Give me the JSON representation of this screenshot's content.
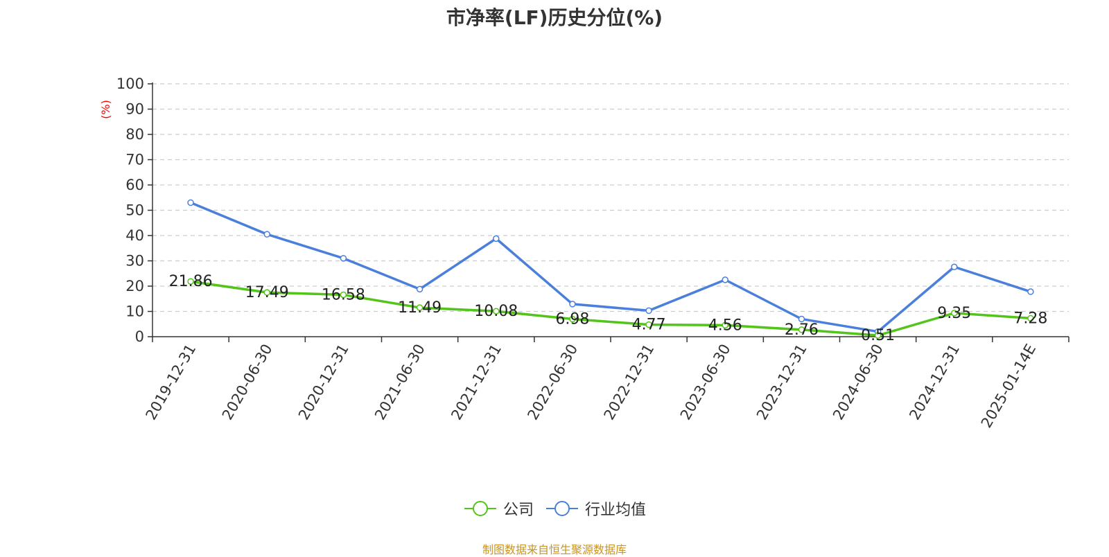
{
  "chart_data": {
    "type": "line",
    "title": "市净率(LF)历史分位(%)",
    "ylabel": "(%)",
    "xlabel": "",
    "ylim": [
      0,
      100
    ],
    "yticks": [
      0,
      10,
      20,
      30,
      40,
      50,
      60,
      70,
      80,
      90,
      100
    ],
    "grid": true,
    "legend_position": "bottom",
    "categories": [
      "2019-12-31",
      "2020-06-30",
      "2020-12-31",
      "2021-06-30",
      "2021-12-31",
      "2022-06-30",
      "2022-12-31",
      "2023-06-30",
      "2023-12-31",
      "2024-06-30",
      "2024-12-31",
      "2025-01-14E"
    ],
    "series": [
      {
        "name": "公司",
        "color": "#52c41a",
        "values": [
          21.86,
          17.49,
          16.58,
          11.49,
          10.08,
          6.98,
          4.77,
          4.56,
          2.76,
          0.51,
          9.35,
          7.28
        ],
        "labels": [
          "21.86",
          "17.49",
          "16.58",
          "11.49",
          "10.08",
          "6.98",
          "4.77",
          "4.56",
          "2.76",
          "0.51",
          "9.35",
          "7.28"
        ]
      },
      {
        "name": "行业均值",
        "color": "#4a7fdb",
        "values": [
          53.0,
          40.5,
          31.0,
          18.8,
          38.8,
          12.9,
          10.3,
          22.5,
          7.0,
          2.0,
          27.6,
          17.8
        ]
      }
    ]
  },
  "source_text": "制图数据来自恒生聚源数据库"
}
